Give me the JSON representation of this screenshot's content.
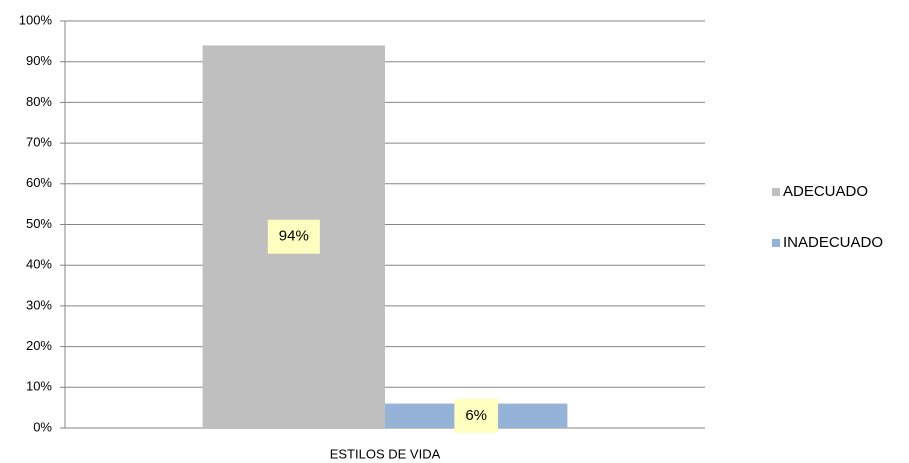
{
  "chart_data": {
    "type": "bar",
    "categories": [
      "ESTILOS DE VIDA"
    ],
    "series": [
      {
        "name": "ADECUADO",
        "color": "#bfbfbf",
        "values": [
          94
        ],
        "value_labels": [
          "94%"
        ]
      },
      {
        "name": "INADECUADO",
        "color": "#95b3d7",
        "values": [
          6
        ],
        "value_labels": [
          "6%"
        ]
      }
    ],
    "ylim": [
      0,
      100
    ],
    "yticks": [
      {
        "value": 0,
        "label": "0%"
      },
      {
        "value": 10,
        "label": "10%"
      },
      {
        "value": 20,
        "label": "20%"
      },
      {
        "value": 30,
        "label": "30%"
      },
      {
        "value": 40,
        "label": "40%"
      },
      {
        "value": 50,
        "label": "50%"
      },
      {
        "value": 60,
        "label": "60%"
      },
      {
        "value": 70,
        "label": "70%"
      },
      {
        "value": 80,
        "label": "80%"
      },
      {
        "value": 90,
        "label": "90%"
      },
      {
        "value": 100,
        "label": "100%"
      }
    ],
    "grid": true,
    "legend": "right"
  }
}
